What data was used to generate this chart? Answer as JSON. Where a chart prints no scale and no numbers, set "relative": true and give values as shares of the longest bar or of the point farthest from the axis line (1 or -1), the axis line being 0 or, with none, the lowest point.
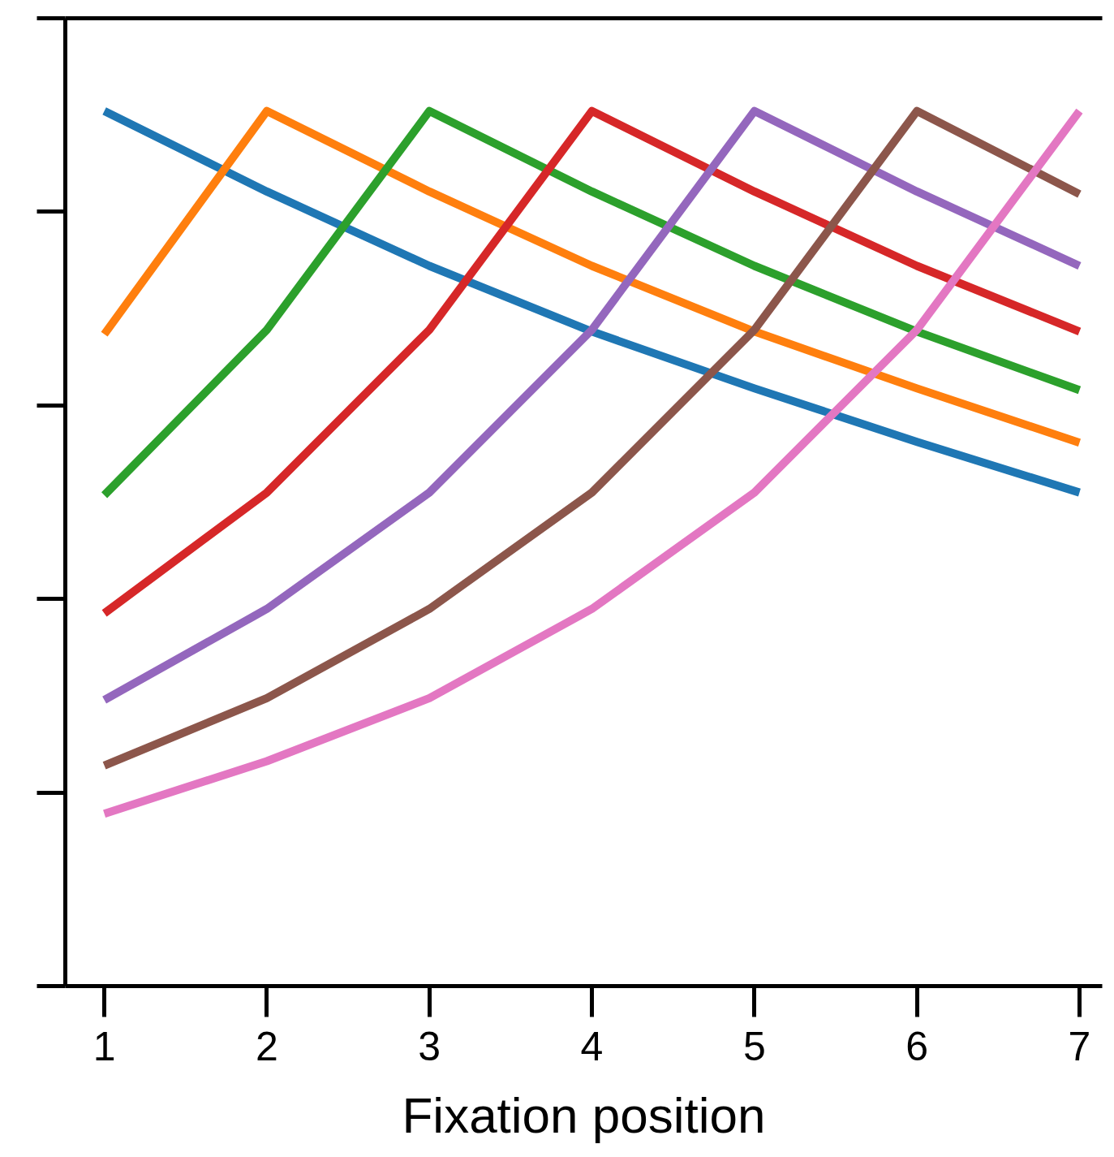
{
  "chart_data": {
    "type": "line",
    "xlabel": "Fixation position",
    "relative": true,
    "x": [
      1,
      2,
      3,
      4,
      5,
      6,
      7
    ],
    "xlim": [
      0.76,
      7.14
    ],
    "xticks": [
      1,
      2,
      3,
      4,
      5,
      6,
      7
    ],
    "grid": false,
    "marker": "none",
    "line_style": "solid",
    "series": [
      {
        "color": "#1f77b4",
        "values": [
          1,
          0.908,
          0.823,
          0.748,
          0.683,
          0.622,
          0.564
        ]
      },
      {
        "color": "#ff7f0e",
        "values": [
          0.745,
          1,
          0.908,
          0.823,
          0.748,
          0.683,
          0.621
        ]
      },
      {
        "color": "#2ca02c",
        "values": [
          0.561,
          0.75,
          1,
          0.908,
          0.823,
          0.748,
          0.681
        ]
      },
      {
        "color": "#d62728",
        "values": [
          0.426,
          0.564,
          0.75,
          1,
          0.908,
          0.823,
          0.748
        ]
      },
      {
        "color": "#9467bd",
        "values": [
          0.327,
          0.431,
          0.564,
          0.75,
          1,
          0.908,
          0.823
        ]
      },
      {
        "color": "#8c564b",
        "values": [
          0.252,
          0.329,
          0.431,
          0.564,
          0.75,
          1,
          0.905
        ]
      },
      {
        "color": "#e377c2",
        "values": [
          0.197,
          0.257,
          0.329,
          0.431,
          0.564,
          0.75,
          1
        ]
      }
    ]
  }
}
